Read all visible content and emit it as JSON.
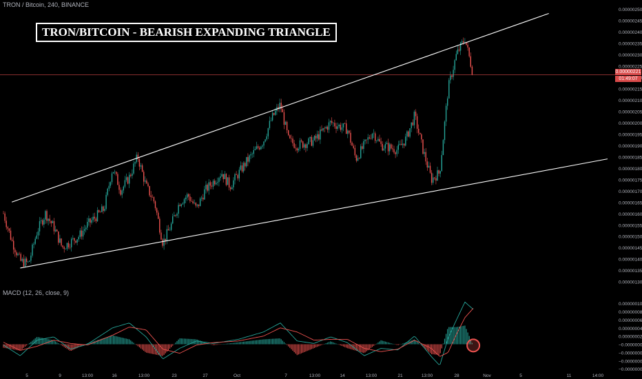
{
  "header": {
    "symbol": "TRON / Bitcoin, 240, BINANCE"
  },
  "annotation": {
    "title": "TRON/BITCOIN - BEARISH EXPANDING TRIANGLE"
  },
  "current_price": {
    "value": "0.00000221",
    "countdown": "01:49:07",
    "color": "#d84a4a"
  },
  "colors": {
    "up": "#26a69a",
    "down": "#ef5350",
    "macd": "#26a69a",
    "signal": "#ef5350",
    "trendline": "#ffffff",
    "highlight": "#ef5350"
  },
  "chart_data": [
    {
      "type": "candlestick",
      "title": "",
      "xlabel": "",
      "ylabel": "",
      "x_ticks": [
        "5",
        "9",
        "13:00",
        "16",
        "13:00",
        "23",
        "27",
        "Oct",
        "7",
        "13:00",
        "14",
        "13:00",
        "21",
        "13:00",
        "28",
        "Nov",
        "5",
        "11",
        "14:00"
      ],
      "y_ticks": [
        "0.00000130",
        "0.00000135",
        "0.00000140",
        "0.00000145",
        "0.00000150",
        "0.00000155",
        "0.00000160",
        "0.00000165",
        "0.00000170",
        "0.00000175",
        "0.00000180",
        "0.00000185",
        "0.00000190",
        "0.00000195",
        "0.00000200",
        "0.00000205",
        "0.00000210",
        "0.00000215",
        "0.00000220",
        "0.00000225",
        "0.00000230",
        "0.00000235",
        "0.00000240",
        "0.00000245",
        "0.00000250"
      ],
      "ylim": [
        1.29e-06,
        2.515e-06
      ],
      "x_range": [
        "Sep 4",
        "Nov 15"
      ],
      "close_path": [
        [
          "Sep 4",
          1.6e-06
        ],
        [
          "Sep 5",
          1.48e-06
        ],
        [
          "Sep 6",
          1.39e-06
        ],
        [
          "Sep 7",
          1.38e-06
        ],
        [
          "Sep 8",
          1.52e-06
        ],
        [
          "Sep 9",
          1.6e-06
        ],
        [
          "Sep 10",
          1.54e-06
        ],
        [
          "Sep 11",
          1.45e-06
        ],
        [
          "Sep 13",
          1.5e-06
        ],
        [
          "Sep 14",
          1.55e-06
        ],
        [
          "Sep 16",
          1.62e-06
        ],
        [
          "Sep 17",
          1.8e-06
        ],
        [
          "Sep 18",
          1.7e-06
        ],
        [
          "Sep 19",
          1.76e-06
        ],
        [
          "Sep 20",
          1.85e-06
        ],
        [
          "Sep 21",
          1.72e-06
        ],
        [
          "Sep 22",
          1.65e-06
        ],
        [
          "Sep 23",
          1.47e-06
        ],
        [
          "Sep 24",
          1.55e-06
        ],
        [
          "Sep 25",
          1.65e-06
        ],
        [
          "Sep 26",
          1.68e-06
        ],
        [
          "Sep 27",
          1.62e-06
        ],
        [
          "Sep 28",
          1.7e-06
        ],
        [
          "Sep 30",
          1.78e-06
        ],
        [
          "Oct 1",
          1.72e-06
        ],
        [
          "Oct 3",
          1.83e-06
        ],
        [
          "Oct 5",
          1.92e-06
        ],
        [
          "Oct 6",
          2.02e-06
        ],
        [
          "Oct 7",
          2.08e-06
        ],
        [
          "Oct 8",
          1.92e-06
        ],
        [
          "Oct 9",
          1.9e-06
        ],
        [
          "Oct 11",
          1.92e-06
        ],
        [
          "Oct 13",
          2e-06
        ],
        [
          "Oct 15",
          1.97e-06
        ],
        [
          "Oct 16",
          1.84e-06
        ],
        [
          "Oct 17",
          1.9e-06
        ],
        [
          "Oct 18",
          1.96e-06
        ],
        [
          "Oct 19",
          1.9e-06
        ],
        [
          "Oct 21",
          1.88e-06
        ],
        [
          "Oct 22",
          1.93e-06
        ],
        [
          "Oct 23",
          2.03e-06
        ],
        [
          "Oct 24",
          1.88e-06
        ],
        [
          "Oct 25",
          1.75e-06
        ],
        [
          "Oct 26",
          1.78e-06
        ],
        [
          "Oct 27",
          2.15e-06
        ],
        [
          "Oct 28",
          2.3e-06
        ],
        [
          "Oct 29",
          2.37e-06
        ],
        [
          "Oct 30",
          2.21e-06
        ]
      ],
      "trendlines": [
        {
          "name": "upper",
          "from": [
            "Sep 5",
            1.65e-06
          ],
          "to": [
            "Nov 8",
            2.48e-06
          ]
        },
        {
          "name": "lower",
          "from": [
            "Sep 6",
            1.36e-06
          ],
          "to": [
            "Nov 15",
            1.84e-06
          ]
        }
      ],
      "current_price_line": 2.21e-06
    },
    {
      "type": "line",
      "title": "MACD (12, 26, close, 9)",
      "y_ticks": [
        "0.00000010",
        "0.00000008",
        "0.00000006",
        "0.00000004",
        "0.00000002",
        "−0.00000000",
        "−0.00000002",
        "−0.00000004",
        "−0.00000006"
      ],
      "ylim": [
        -6.8e-08,
        1.17e-07
      ],
      "series": [
        {
          "name": "MACD",
          "points": [
            [
              "Sep 4",
              -2e-09
            ],
            [
              "Sep 6",
              -2.8e-08
            ],
            [
              "Sep 8",
              1e-08
            ],
            [
              "Sep 10",
              1.8e-08
            ],
            [
              "Sep 12",
              -1.2e-08
            ],
            [
              "Sep 14",
              0.0
            ],
            [
              "Sep 17",
              4e-08
            ],
            [
              "Sep 19",
              5.2e-08
            ],
            [
              "Sep 21",
              1.8e-08
            ],
            [
              "Sep 23",
              -3.6e-08
            ],
            [
              "Sep 25",
              -1e-08
            ],
            [
              "Sep 27",
              8e-09
            ],
            [
              "Sep 29",
              2e-09
            ],
            [
              "Oct 2",
              1.2e-08
            ],
            [
              "Oct 5",
              3e-08
            ],
            [
              "Oct 7",
              5.2e-08
            ],
            [
              "Oct 9",
              8e-09
            ],
            [
              "Oct 11",
              2e-09
            ],
            [
              "Oct 13",
              1.8e-08
            ],
            [
              "Oct 15",
              4e-09
            ],
            [
              "Oct 17",
              -2.8e-08
            ],
            [
              "Oct 19",
              -1e-08
            ],
            [
              "Oct 21",
              -1.4e-08
            ],
            [
              "Oct 23",
              2e-08
            ],
            [
              "Oct 25",
              -3e-08
            ],
            [
              "Oct 26",
              -5.2e-08
            ],
            [
              "Oct 27",
              1.5e-08
            ],
            [
              "Oct 28",
              6e-08
            ],
            [
              "Oct 29",
              1.03e-07
            ],
            [
              "Oct 30",
              8.5e-08
            ]
          ]
        },
        {
          "name": "Signal",
          "points": [
            [
              "Sep 4",
              5e-09
            ],
            [
              "Sep 6",
              -1.5e-08
            ],
            [
              "Sep 8",
              -5e-09
            ],
            [
              "Sep 10",
              1e-08
            ],
            [
              "Sep 12",
              2e-09
            ],
            [
              "Sep 14",
              -2e-09
            ],
            [
              "Sep 17",
              2.2e-08
            ],
            [
              "Sep 19",
              4.2e-08
            ],
            [
              "Sep 21",
              3.5e-08
            ],
            [
              "Sep 23",
              -1.2e-08
            ],
            [
              "Sep 25",
              -2.2e-08
            ],
            [
              "Sep 27",
              -2e-09
            ],
            [
              "Sep 29",
              4e-09
            ],
            [
              "Oct 2",
              8e-09
            ],
            [
              "Oct 5",
              2e-08
            ],
            [
              "Oct 7",
              4e-08
            ],
            [
              "Oct 9",
              3e-08
            ],
            [
              "Oct 11",
              1e-08
            ],
            [
              "Oct 13",
              1.2e-08
            ],
            [
              "Oct 15",
              1.2e-08
            ],
            [
              "Oct 17",
              -1e-08
            ],
            [
              "Oct 19",
              -1.8e-08
            ],
            [
              "Oct 21",
              -1.2e-08
            ],
            [
              "Oct 23",
              1e-08
            ],
            [
              "Oct 25",
              -1e-08
            ],
            [
              "Oct 26",
              -3e-08
            ],
            [
              "Oct 27",
              -2e-08
            ],
            [
              "Oct 28",
              2.5e-08
            ],
            [
              "Oct 29",
              6.5e-08
            ],
            [
              "Oct 30",
              8.8e-08
            ]
          ]
        }
      ],
      "highlight": {
        "at": [
          "Oct 30",
          -3e-09
        ],
        "shape": "circle"
      }
    }
  ]
}
